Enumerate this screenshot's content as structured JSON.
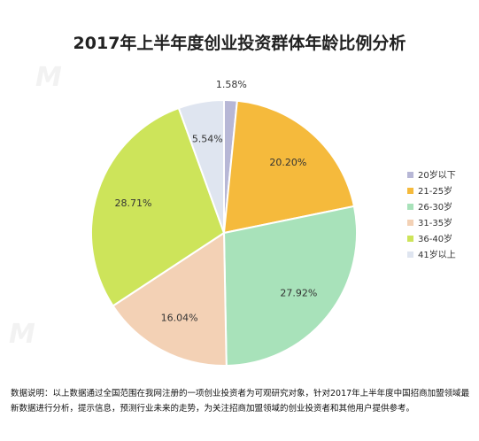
{
  "chart_data": {
    "type": "pie",
    "title": "2017年上半年度创业投资群体年龄比例分析",
    "categories": [
      "20岁以下",
      "21-25岁",
      "26-30岁",
      "31-35岁",
      "36-40岁",
      "41岁以上"
    ],
    "values": [
      1.58,
      20.2,
      27.92,
      16.04,
      28.71,
      5.54
    ],
    "labels": [
      "1.58%",
      "20.20%",
      "27.92%",
      "16.04%",
      "28.71%",
      "5.54%"
    ],
    "colors": [
      "#b7b7d6",
      "#f5ba3c",
      "#a8e2ba",
      "#f3d1b5",
      "#cde45a",
      "#dfe5f0"
    ],
    "legend_position": "right",
    "start_angle_deg": 0,
    "direction": "clockwise"
  },
  "footnote": "数据说明：以上数据通过全国范围在我网注册的一项创业投资者为可观研究对象，针对2017年上半年度中国招商加盟领域最新数据进行分析，提示信息，预测行业未来的走势，为关注招商加盟领域的创业投资者和其他用户提供参考。"
}
